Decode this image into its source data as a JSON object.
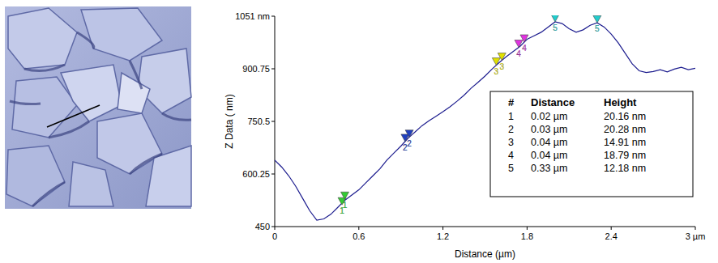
{
  "chart_data": {
    "type": "line",
    "x_label": "Distance (µm)",
    "y_label": "Z Data ( nm)",
    "color": "#1c1c8e",
    "x": [
      0.0,
      0.05,
      0.1,
      0.15,
      0.2,
      0.25,
      0.3,
      0.35,
      0.4,
      0.45,
      0.5,
      0.55,
      0.6,
      0.65,
      0.7,
      0.75,
      0.8,
      0.85,
      0.9,
      0.95,
      1.0,
      1.05,
      1.1,
      1.15,
      1.2,
      1.25,
      1.3,
      1.35,
      1.4,
      1.45,
      1.5,
      1.55,
      1.6,
      1.65,
      1.7,
      1.75,
      1.8,
      1.85,
      1.9,
      1.95,
      2.0,
      2.05,
      2.1,
      2.15,
      2.2,
      2.25,
      2.3,
      2.35,
      2.4,
      2.45,
      2.5,
      2.55,
      2.6,
      2.65,
      2.7,
      2.75,
      2.8,
      2.85,
      2.9,
      2.95,
      3.0
    ],
    "values": [
      640,
      620,
      595,
      565,
      530,
      495,
      468,
      472,
      485,
      505,
      525,
      540,
      555,
      575,
      595,
      615,
      640,
      660,
      680,
      702,
      720,
      738,
      752,
      765,
      778,
      792,
      808,
      825,
      845,
      862,
      880,
      900,
      918,
      935,
      950,
      965,
      985,
      995,
      1005,
      1020,
      1035,
      1030,
      1015,
      1005,
      1012,
      1025,
      1032,
      1020,
      1000,
      975,
      945,
      915,
      895,
      890,
      893,
      898,
      892,
      900,
      905,
      898,
      902
    ],
    "xlim": [
      0,
      3
    ],
    "xticks": [
      0,
      0.6,
      1.2,
      1.8,
      2.4,
      {
        "value": 3,
        "label": "3 µm"
      }
    ],
    "ylim": [
      450,
      1051
    ],
    "yticks": [
      450,
      600.25,
      750.5,
      900.75,
      {
        "value": 1051,
        "label": "1051 nm"
      }
    ],
    "grid": false,
    "cursors": [
      {
        "label": "1",
        "color": "#33cc33",
        "x": [
          0.48,
          0.5
        ],
        "y": [
          512,
          528
        ]
      },
      {
        "label": "2",
        "color": "#2040c0",
        "x": [
          0.93,
          0.96
        ],
        "y": [
          693,
          705
        ]
      },
      {
        "label": "3",
        "color": "#e0e000",
        "x": [
          1.58,
          1.62
        ],
        "y": [
          911,
          925
        ]
      },
      {
        "label": "4",
        "color": "#e033e0",
        "x": [
          1.74,
          1.78
        ],
        "y": [
          962,
          977
        ]
      },
      {
        "label": "5",
        "color": "#22cccc",
        "x": [
          2.0,
          2.3
        ],
        "y": [
          1035,
          1032
        ]
      }
    ]
  },
  "table": {
    "header": [
      "#",
      "Distance",
      "Height"
    ],
    "rows": [
      [
        "1",
        "0.02 µm",
        "20.16 nm"
      ],
      [
        "2",
        "0.03 µm",
        "20.28 nm"
      ],
      [
        "3",
        "0.04 µm",
        "14.91 nm"
      ],
      [
        "4",
        "0.04 µm",
        "18.79 nm"
      ],
      [
        "5",
        "0.33 µm",
        "12.18 nm"
      ]
    ]
  }
}
